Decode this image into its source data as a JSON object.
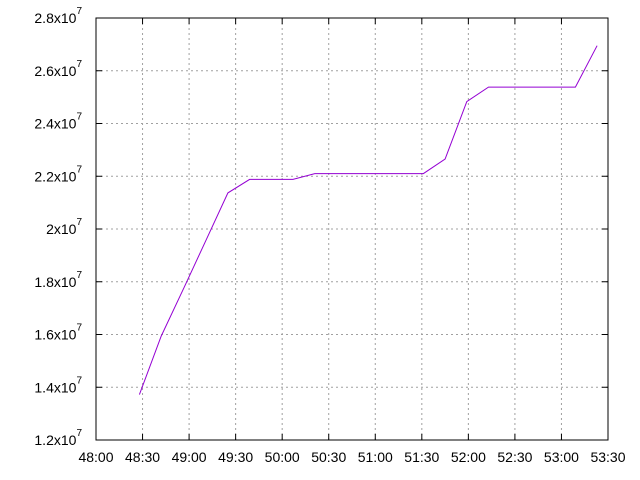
{
  "chart_data": {
    "type": "line",
    "title": "",
    "xlabel": "",
    "ylabel": "",
    "xlim": [
      "48:00",
      "53:30"
    ],
    "ylim": [
      12000000,
      28000000
    ],
    "grid": true,
    "x_ticks": [
      "48:00",
      "48:30",
      "49:00",
      "49:30",
      "50:00",
      "50:30",
      "51:00",
      "51:30",
      "52:00",
      "52:30",
      "53:00",
      "53:30"
    ],
    "y_ticks": [
      {
        "value": 12000000,
        "mantissa": "1.2",
        "base": "x10",
        "exp": "7"
      },
      {
        "value": 14000000,
        "mantissa": "1.4",
        "base": "x10",
        "exp": "7"
      },
      {
        "value": 16000000,
        "mantissa": "1.6",
        "base": "x10",
        "exp": "7"
      },
      {
        "value": 18000000,
        "mantissa": "1.8",
        "base": "x10",
        "exp": "7"
      },
      {
        "value": 20000000,
        "mantissa": "2",
        "base": "x10",
        "exp": "7"
      },
      {
        "value": 22000000,
        "mantissa": "2.2",
        "base": "x10",
        "exp": "7"
      },
      {
        "value": 24000000,
        "mantissa": "2.4",
        "base": "x10",
        "exp": "7"
      },
      {
        "value": 26000000,
        "mantissa": "2.6",
        "base": "x10",
        "exp": "7"
      },
      {
        "value": 28000000,
        "mantissa": "2.8",
        "base": "x10",
        "exp": "7"
      }
    ],
    "series": [
      {
        "color": "#9400d3",
        "points": [
          {
            "x": "48:28",
            "y": 13720000
          },
          {
            "x": "48:42",
            "y": 15940000
          },
          {
            "x": "48:57",
            "y": 17810000
          },
          {
            "x": "49:11",
            "y": 19590000
          },
          {
            "x": "49:25",
            "y": 21370000
          },
          {
            "x": "49:39",
            "y": 21880000
          },
          {
            "x": "49:53",
            "y": 21880000
          },
          {
            "x": "50:07",
            "y": 21880000
          },
          {
            "x": "50:21",
            "y": 22100000
          },
          {
            "x": "50:35",
            "y": 22100000
          },
          {
            "x": "50:49",
            "y": 22100000
          },
          {
            "x": "51:03",
            "y": 22100000
          },
          {
            "x": "51:17",
            "y": 22100000
          },
          {
            "x": "51:31",
            "y": 22100000
          },
          {
            "x": "51:45",
            "y": 22650000
          },
          {
            "x": "51:59",
            "y": 24830000
          },
          {
            "x": "52:13",
            "y": 25380000
          },
          {
            "x": "52:27",
            "y": 25380000
          },
          {
            "x": "52:41",
            "y": 25380000
          },
          {
            "x": "52:55",
            "y": 25380000
          },
          {
            "x": "53:09",
            "y": 25380000
          },
          {
            "x": "53:23",
            "y": 26950000
          }
        ]
      }
    ]
  }
}
